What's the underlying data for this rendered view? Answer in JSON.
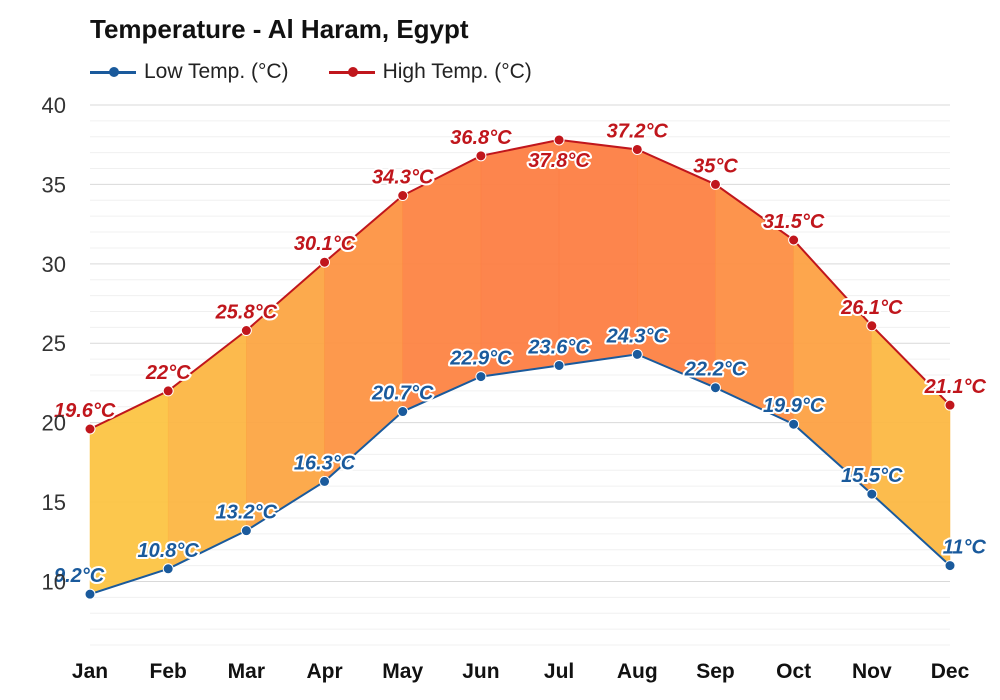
{
  "title": "Temperature - Al Haram, Egypt",
  "legend": [
    {
      "label": "Low Temp. (°C)",
      "color": "#1a5a9c"
    },
    {
      "label": "High Temp. (°C)",
      "color": "#c0161c"
    }
  ],
  "colors": {
    "low": "#1a5a9c",
    "high": "#c0161c",
    "fill_cool": "#fcc743",
    "fill_hot": "#fd7e43",
    "grid": "#e6e6e6"
  },
  "chart_data": {
    "type": "area",
    "title": "Temperature - Al Haram, Egypt",
    "categories": [
      "Jan",
      "Feb",
      "Mar",
      "Apr",
      "May",
      "Jun",
      "Jul",
      "Aug",
      "Sep",
      "Oct",
      "Nov",
      "Dec"
    ],
    "series": [
      {
        "name": "Low Temp. (°C)",
        "values": [
          9.2,
          10.8,
          13.2,
          16.3,
          20.7,
          22.9,
          23.6,
          24.3,
          22.2,
          19.9,
          15.5,
          11
        ],
        "labels": [
          "9.2°C",
          "10.8°C",
          "13.2°C",
          "16.3°C",
          "20.7°C",
          "22.9°C",
          "23.6°C",
          "24.3°C",
          "22.2°C",
          "19.9°C",
          "15.5°C",
          "11°C"
        ]
      },
      {
        "name": "High Temp. (°C)",
        "values": [
          19.6,
          22,
          25.8,
          30.1,
          34.3,
          36.8,
          37.8,
          37.2,
          35,
          31.5,
          26.1,
          21.1
        ],
        "labels": [
          "19.6°C",
          "22°C",
          "25.8°C",
          "30.1°C",
          "34.3°C",
          "36.8°C",
          "37.8°C",
          "37.2°C",
          "35°C",
          "31.5°C",
          "26.1°C",
          "21.1°C"
        ]
      }
    ],
    "y_ticks": [
      "10",
      "15",
      "20",
      "25",
      "30",
      "35",
      "40"
    ],
    "ylim": [
      6,
      40
    ],
    "grid": true,
    "legend_position": "top-left"
  }
}
